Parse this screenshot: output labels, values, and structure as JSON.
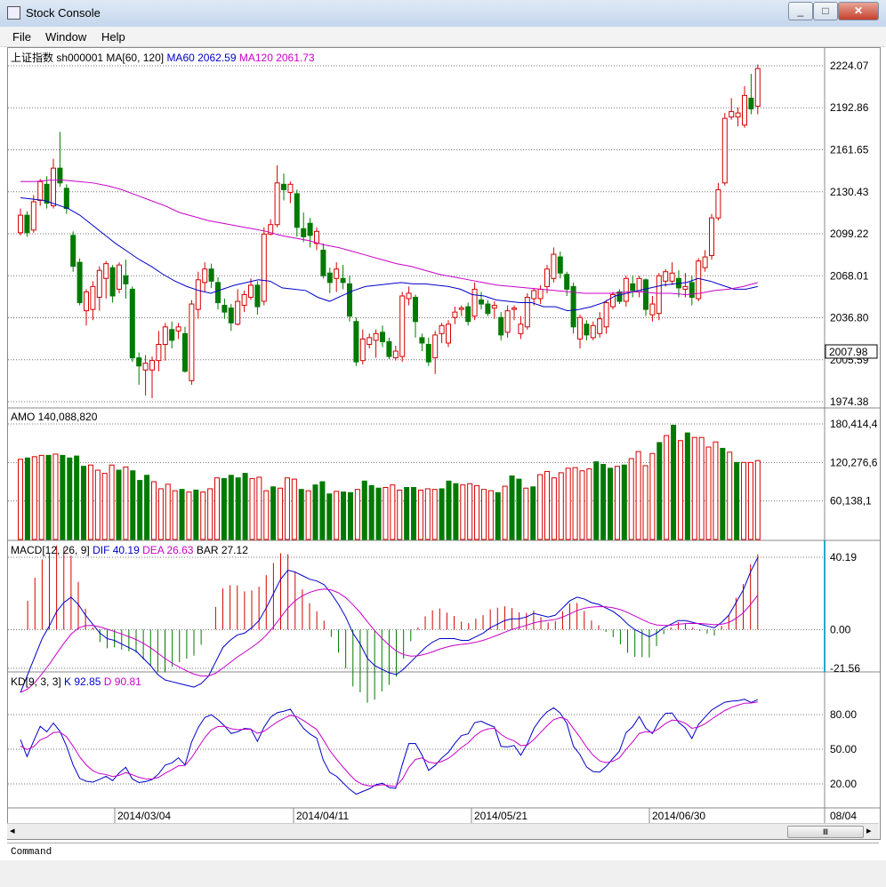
{
  "window": {
    "title": "Stock Console",
    "min_label": "_",
    "max_label": "□",
    "close_label": "✕"
  },
  "menu": {
    "file": "File",
    "window": "Window",
    "help": "Help"
  },
  "colors": {
    "up": "#d40000",
    "down": "#007a00",
    "ma60": "#0000c8",
    "ma120": "#c800c8",
    "grid": "#888888",
    "k": "#0000c8",
    "d": "#c800c8",
    "cursor": "#2aa7c8"
  },
  "price_panel": {
    "label_prefix": "上证指数 sh000001 MA[60, 120]",
    "ma60_label": "MA60 2062.59",
    "ma120_label": "MA120 2061.73",
    "price_axis": [
      "2224.07",
      "2192.86",
      "2161.65",
      "2130.43",
      "2099.22",
      "2068.01",
      "2036.80",
      "2005.59",
      "1974.38"
    ],
    "current_price": "2007.98"
  },
  "amo_panel": {
    "label": "AMO 140,088,820",
    "axis": [
      "180,414,4",
      "120,276,6",
      "60,138,1"
    ]
  },
  "macd_panel": {
    "label_prefix": "MACD[12, 26, 9]",
    "dif_label": "DIF 40.19",
    "dea_label": "DEA 26.63",
    "bar_label": "BAR 27.12",
    "axis": [
      "40.19",
      "0.00",
      "-21.56"
    ]
  },
  "kd_panel": {
    "label_prefix": "KD[9, 3, 3]",
    "k_label": "K 92.85",
    "d_label": "D 90.81",
    "axis": [
      "80.00",
      "50.00",
      "20.00"
    ]
  },
  "date_axis": [
    "2014/03/04",
    "2014/04/11",
    "2014/05/21",
    "2014/06/30"
  ],
  "date_axis_right": "08/04",
  "scroll": {
    "thumb_glyph": "Ⅲ",
    "left_arrow": "◂",
    "right_arrow": "▸"
  },
  "command": {
    "label": "Command"
  },
  "chart_data": {
    "type": "candlestick",
    "title": "上证指数 sh000001",
    "candles": [
      {
        "o": 2100,
        "c": 2113,
        "h": 2118,
        "l": 2098
      },
      {
        "o": 2113,
        "c": 2100,
        "h": 2116,
        "l": 2097
      },
      {
        "o": 2102,
        "c": 2123,
        "h": 2128,
        "l": 2100
      },
      {
        "o": 2124,
        "c": 2138,
        "h": 2140,
        "l": 2120
      },
      {
        "o": 2136,
        "c": 2122,
        "h": 2142,
        "l": 2118
      },
      {
        "o": 2120,
        "c": 2148,
        "h": 2155,
        "l": 2118
      },
      {
        "o": 2148,
        "c": 2137,
        "h": 2175,
        "l": 2134
      },
      {
        "o": 2133,
        "c": 2118,
        "h": 2136,
        "l": 2114
      },
      {
        "o": 2098,
        "c": 2075,
        "h": 2101,
        "l": 2071
      },
      {
        "o": 2078,
        "c": 2048,
        "h": 2081,
        "l": 2046
      },
      {
        "o": 2042,
        "c": 2056,
        "h": 2058,
        "l": 2031
      },
      {
        "o": 2043,
        "c": 2060,
        "h": 2064,
        "l": 2035
      },
      {
        "o": 2052,
        "c": 2072,
        "h": 2075,
        "l": 2042
      },
      {
        "o": 2066,
        "c": 2077,
        "h": 2079,
        "l": 2051
      },
      {
        "o": 2074,
        "c": 2053,
        "h": 2076,
        "l": 2048
      },
      {
        "o": 2058,
        "c": 2076,
        "h": 2078,
        "l": 2055
      },
      {
        "o": 2068,
        "c": 2062,
        "h": 2080,
        "l": 2051
      },
      {
        "o": 2058,
        "c": 2007,
        "h": 2060,
        "l": 2004
      },
      {
        "o": 2007,
        "c": 2001,
        "h": 2011,
        "l": 1987
      },
      {
        "o": 1998,
        "c": 2003,
        "h": 2009,
        "l": 1979
      },
      {
        "o": 1998,
        "c": 2005,
        "h": 2008,
        "l": 1977
      },
      {
        "o": 2005,
        "c": 2017,
        "h": 2027,
        "l": 1997
      },
      {
        "o": 2017,
        "c": 2030,
        "h": 2033,
        "l": 2005
      },
      {
        "o": 2028,
        "c": 2020,
        "h": 2034,
        "l": 2014
      },
      {
        "o": 2027,
        "c": 2030,
        "h": 2033,
        "l": 2021
      },
      {
        "o": 2025,
        "c": 1997,
        "h": 2030,
        "l": 1996
      },
      {
        "o": 1990,
        "c": 2047,
        "h": 2050,
        "l": 1987
      },
      {
        "o": 2043,
        "c": 2065,
        "h": 2071,
        "l": 2036
      },
      {
        "o": 2063,
        "c": 2073,
        "h": 2078,
        "l": 2056
      },
      {
        "o": 2073,
        "c": 2064,
        "h": 2077,
        "l": 2059
      },
      {
        "o": 2063,
        "c": 2048,
        "h": 2067,
        "l": 2043
      },
      {
        "o": 2046,
        "c": 2041,
        "h": 2051,
        "l": 2036
      },
      {
        "o": 2044,
        "c": 2033,
        "h": 2047,
        "l": 2027
      },
      {
        "o": 2032,
        "c": 2049,
        "h": 2058,
        "l": 2031
      },
      {
        "o": 2046,
        "c": 2054,
        "h": 2057,
        "l": 2041
      },
      {
        "o": 2052,
        "c": 2061,
        "h": 2066,
        "l": 2050
      },
      {
        "o": 2061,
        "c": 2045,
        "h": 2064,
        "l": 2039
      },
      {
        "o": 2049,
        "c": 2099,
        "h": 2104,
        "l": 2046
      },
      {
        "o": 2099,
        "c": 2106,
        "h": 2110,
        "l": 2098
      },
      {
        "o": 2106,
        "c": 2137,
        "h": 2150,
        "l": 2104
      },
      {
        "o": 2136,
        "c": 2132,
        "h": 2144,
        "l": 2124
      },
      {
        "o": 2130,
        "c": 2136,
        "h": 2138,
        "l": 2122
      },
      {
        "o": 2129,
        "c": 2104,
        "h": 2132,
        "l": 2097
      },
      {
        "o": 2103,
        "c": 2097,
        "h": 2115,
        "l": 2093
      },
      {
        "o": 2107,
        "c": 2098,
        "h": 2111,
        "l": 2089
      },
      {
        "o": 2092,
        "c": 2101,
        "h": 2104,
        "l": 2087
      },
      {
        "o": 2087,
        "c": 2068,
        "h": 2092,
        "l": 2066
      },
      {
        "o": 2070,
        "c": 2063,
        "h": 2074,
        "l": 2055
      },
      {
        "o": 2066,
        "c": 2073,
        "h": 2078,
        "l": 2056
      },
      {
        "o": 2066,
        "c": 2063,
        "h": 2076,
        "l": 2058
      },
      {
        "o": 2062,
        "c": 2038,
        "h": 2068,
        "l": 2034
      },
      {
        "o": 2034,
        "c": 2004,
        "h": 2037,
        "l": 2001
      },
      {
        "o": 2005,
        "c": 2021,
        "h": 2028,
        "l": 2002
      },
      {
        "o": 2017,
        "c": 2022,
        "h": 2025,
        "l": 2014
      },
      {
        "o": 2020,
        "c": 2025,
        "h": 2028,
        "l": 2007
      },
      {
        "o": 2026,
        "c": 2019,
        "h": 2031,
        "l": 2015
      },
      {
        "o": 2019,
        "c": 2008,
        "h": 2022,
        "l": 2006
      },
      {
        "o": 2007,
        "c": 2012,
        "h": 2016,
        "l": 2005
      },
      {
        "o": 2008,
        "c": 2053,
        "h": 2056,
        "l": 2004
      },
      {
        "o": 2051,
        "c": 2055,
        "h": 2060,
        "l": 2046
      },
      {
        "o": 2052,
        "c": 2034,
        "h": 2054,
        "l": 2022
      },
      {
        "o": 2022,
        "c": 2018,
        "h": 2025,
        "l": 2012
      },
      {
        "o": 2017,
        "c": 2004,
        "h": 2022,
        "l": 2001
      },
      {
        "o": 2007,
        "c": 2024,
        "h": 2027,
        "l": 1995
      },
      {
        "o": 2025,
        "c": 2031,
        "h": 2033,
        "l": 2018
      },
      {
        "o": 2018,
        "c": 2032,
        "h": 2035,
        "l": 2015
      },
      {
        "o": 2037,
        "c": 2041,
        "h": 2045,
        "l": 2032
      },
      {
        "o": 2043,
        "c": 2044,
        "h": 2046,
        "l": 2038
      },
      {
        "o": 2045,
        "c": 2034,
        "h": 2048,
        "l": 2031
      },
      {
        "o": 2038,
        "c": 2058,
        "h": 2063,
        "l": 2035
      },
      {
        "o": 2050,
        "c": 2047,
        "h": 2056,
        "l": 2043
      },
      {
        "o": 2047,
        "c": 2040,
        "h": 2050,
        "l": 2038
      },
      {
        "o": 2044,
        "c": 2046,
        "h": 2049,
        "l": 2036
      },
      {
        "o": 2037,
        "c": 2024,
        "h": 2041,
        "l": 2020
      },
      {
        "o": 2026,
        "c": 2042,
        "h": 2046,
        "l": 2022
      },
      {
        "o": 2043,
        "c": 2044,
        "h": 2046,
        "l": 2035
      },
      {
        "o": 2025,
        "c": 2032,
        "h": 2038,
        "l": 2021
      },
      {
        "o": 2030,
        "c": 2052,
        "h": 2055,
        "l": 2028
      },
      {
        "o": 2051,
        "c": 2057,
        "h": 2059,
        "l": 2046
      },
      {
        "o": 2051,
        "c": 2058,
        "h": 2061,
        "l": 2047
      },
      {
        "o": 2060,
        "c": 2073,
        "h": 2076,
        "l": 2055
      },
      {
        "o": 2066,
        "c": 2084,
        "h": 2089,
        "l": 2063
      },
      {
        "o": 2082,
        "c": 2070,
        "h": 2086,
        "l": 2066
      },
      {
        "o": 2069,
        "c": 2058,
        "h": 2071,
        "l": 2053
      },
      {
        "o": 2060,
        "c": 2030,
        "h": 2063,
        "l": 2025
      },
      {
        "o": 2021,
        "c": 2037,
        "h": 2039,
        "l": 2014
      },
      {
        "o": 2032,
        "c": 2024,
        "h": 2035,
        "l": 2020
      },
      {
        "o": 2022,
        "c": 2031,
        "h": 2034,
        "l": 2020
      },
      {
        "o": 2025,
        "c": 2036,
        "h": 2041,
        "l": 2022
      },
      {
        "o": 2030,
        "c": 2048,
        "h": 2050,
        "l": 2025
      },
      {
        "o": 2045,
        "c": 2054,
        "h": 2056,
        "l": 2043
      },
      {
        "o": 2056,
        "c": 2049,
        "h": 2058,
        "l": 2047
      },
      {
        "o": 2049,
        "c": 2066,
        "h": 2068,
        "l": 2045
      },
      {
        "o": 2062,
        "c": 2057,
        "h": 2068,
        "l": 2052
      },
      {
        "o": 2056,
        "c": 2066,
        "h": 2068,
        "l": 2052
      },
      {
        "o": 2065,
        "c": 2043,
        "h": 2066,
        "l": 2038
      },
      {
        "o": 2039,
        "c": 2047,
        "h": 2053,
        "l": 2034
      },
      {
        "o": 2040,
        "c": 2068,
        "h": 2070,
        "l": 2035
      },
      {
        "o": 2064,
        "c": 2071,
        "h": 2073,
        "l": 2060
      },
      {
        "o": 2064,
        "c": 2070,
        "h": 2078,
        "l": 2061
      },
      {
        "o": 2066,
        "c": 2059,
        "h": 2072,
        "l": 2052
      },
      {
        "o": 2058,
        "c": 2060,
        "h": 2070,
        "l": 2052
      },
      {
        "o": 2063,
        "c": 2052,
        "h": 2068,
        "l": 2046
      },
      {
        "o": 2051,
        "c": 2079,
        "h": 2081,
        "l": 2049
      },
      {
        "o": 2074,
        "c": 2082,
        "h": 2087,
        "l": 2071
      },
      {
        "o": 2083,
        "c": 2111,
        "h": 2114,
        "l": 2080
      },
      {
        "o": 2111,
        "c": 2132,
        "h": 2137,
        "l": 2109
      },
      {
        "o": 2137,
        "c": 2185,
        "h": 2189,
        "l": 2135
      },
      {
        "o": 2186,
        "c": 2190,
        "h": 2200,
        "l": 2184
      },
      {
        "o": 2186,
        "c": 2189,
        "h": 2193,
        "l": 2179
      },
      {
        "o": 2180,
        "c": 2202,
        "h": 2209,
        "l": 2178
      },
      {
        "o": 2200,
        "c": 2192,
        "h": 2218,
        "l": 2188
      },
      {
        "o": 2194,
        "c": 2222,
        "h": 2225,
        "l": 2188
      }
    ],
    "ma60": [
      2126,
      2125,
      2124,
      2121,
      2118,
      2113,
      2106,
      2099,
      2092,
      2086,
      2080,
      2075,
      2069,
      2064,
      2060,
      2057,
      2055,
      2058,
      2061,
      2063,
      2065,
      2064,
      2059,
      2058,
      2057,
      2052,
      2049,
      2053,
      2057,
      2060,
      2061,
      2062,
      2063,
      2062,
      2062,
      2061,
      2060,
      2058,
      2054,
      2053,
      2050,
      2049,
      2048,
      2048,
      2045,
      2045,
      2042,
      2043,
      2045,
      2048,
      2053,
      2055,
      2057,
      2059,
      2061,
      2062,
      2063,
      2066,
      2064,
      2061,
      2058,
      2058,
      2060
    ],
    "ma120": [
      2138,
      2138,
      2139,
      2139,
      2138,
      2137,
      2135,
      2132,
      2128,
      2124,
      2120,
      2115,
      2112,
      2109,
      2107,
      2105,
      2103,
      2101,
      2098,
      2096,
      2094,
      2091,
      2089,
      2086,
      2083,
      2080,
      2077,
      2075,
      2072,
      2069,
      2067,
      2065,
      2063,
      2061,
      2060,
      2059,
      2058,
      2057,
      2056,
      2055,
      2055,
      2055,
      2056,
      2056,
      2055,
      2055,
      2054,
      2055,
      2057,
      2058,
      2060,
      2063
    ],
    "amo": [
      125,
      127,
      129,
      131,
      131,
      133,
      131,
      127,
      130,
      114,
      116,
      108,
      103,
      116,
      108,
      113,
      107,
      92,
      100,
      90,
      79,
      86,
      76,
      78,
      74,
      77,
      74,
      79,
      96,
      95,
      100,
      96,
      103,
      95,
      97,
      76,
      82,
      80,
      96,
      94,
      78,
      76,
      85,
      90,
      71,
      75,
      74,
      73,
      78,
      91,
      84,
      80,
      81,
      85,
      77,
      81,
      81,
      77,
      79,
      78,
      79,
      91,
      87,
      85,
      87,
      84,
      78,
      76,
      73,
      83,
      99,
      94,
      80,
      82,
      101,
      106,
      96,
      104,
      111,
      112,
      107,
      110,
      121,
      117,
      111,
      114,
      116,
      126,
      137,
      115,
      134,
      151,
      162,
      178,
      154,
      166,
      159,
      159,
      144,
      152,
      142,
      136,
      120,
      120,
      120,
      123
    ],
    "dif": [
      -35,
      -25,
      -15,
      -5,
      2,
      10,
      15,
      18,
      14,
      8,
      3,
      -2,
      -5,
      -6,
      -8,
      -10,
      -12,
      -16,
      -20,
      -25,
      -28,
      -29,
      -30,
      -31,
      -32,
      -30,
      -26,
      -18,
      -10,
      -6,
      -3,
      -2,
      1,
      5,
      12,
      20,
      28,
      33,
      32,
      30,
      28,
      27,
      25,
      20,
      14,
      7,
      -2,
      -8,
      -16,
      -20,
      -22,
      -24,
      -25,
      -22,
      -18,
      -14,
      -10,
      -7,
      -5,
      -5,
      -5,
      -6,
      -6,
      -4,
      -2,
      1,
      3,
      5,
      6,
      6,
      7,
      9,
      8,
      7,
      8,
      12,
      16,
      18,
      17,
      15,
      14,
      12,
      10,
      7,
      3,
      0,
      -2,
      -4,
      -2,
      1,
      3,
      5,
      5,
      4,
      3,
      2,
      1,
      4,
      8,
      15,
      22,
      32,
      40
    ]
  }
}
